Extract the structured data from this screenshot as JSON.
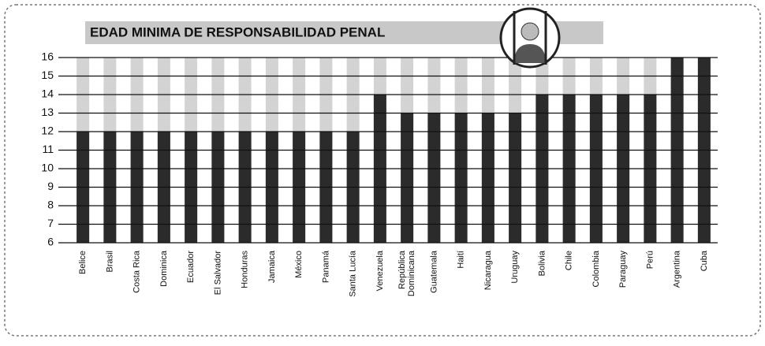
{
  "chart_data": {
    "type": "bar",
    "title": "EDAD MINIMA DE RESPONSABILIDAD PENAL",
    "categories": [
      "Belice",
      "Brasil",
      "Costa Rica",
      "Dominica",
      "Ecuador",
      "El Salvador",
      "Honduras",
      "Jamaica",
      "México",
      "Panamá",
      "Santa Lucía",
      "Venezuela",
      "República\nDominicana",
      "Guatemala",
      "Haití",
      "Nicaragua",
      "Uruguay",
      "Bolivia",
      "Chile",
      "Colombia",
      "Paraguay",
      "Perú",
      "Argentina",
      "Cuba"
    ],
    "values": [
      12,
      12,
      12,
      12,
      12,
      12,
      12,
      12,
      12,
      12,
      12,
      14,
      13,
      13,
      13,
      13,
      13,
      14,
      14,
      14,
      14,
      14,
      16,
      16
    ],
    "color": "#2b2b2b",
    "background_color": "#d3d3d3",
    "ylim": [
      6,
      16
    ],
    "yticks": [
      6,
      7,
      8,
      9,
      10,
      11,
      12,
      13,
      14,
      15,
      16
    ],
    "grid": true
  }
}
